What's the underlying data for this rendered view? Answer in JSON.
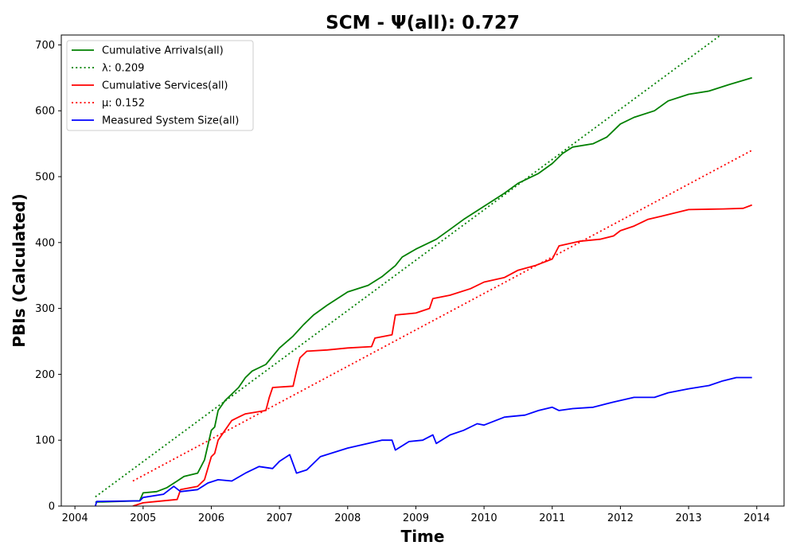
{
  "chart_data": {
    "type": "line",
    "title": "SCM -  Ψ(all): 0.727",
    "xlabel": "Time",
    "ylabel": "PBIs (Calculated)",
    "xlim": [
      2003.8,
      2014.4
    ],
    "ylim": [
      0,
      715
    ],
    "x_ticks": [
      2004,
      2005,
      2006,
      2007,
      2008,
      2009,
      2010,
      2011,
      2012,
      2013,
      2014
    ],
    "y_ticks": [
      0,
      100,
      200,
      300,
      400,
      500,
      600,
      700
    ],
    "grid": false,
    "legend_position": "top-left",
    "series": [
      {
        "name": "Cumulative Arrivals(all)",
        "color": "#008000",
        "style": "solid",
        "points": [
          [
            2004.3,
            6
          ],
          [
            2004.95,
            8
          ],
          [
            2005.0,
            20
          ],
          [
            2005.2,
            22
          ],
          [
            2005.35,
            28
          ],
          [
            2005.5,
            38
          ],
          [
            2005.6,
            45
          ],
          [
            2005.8,
            50
          ],
          [
            2005.9,
            70
          ],
          [
            2006.0,
            115
          ],
          [
            2006.05,
            120
          ],
          [
            2006.1,
            145
          ],
          [
            2006.2,
            160
          ],
          [
            2006.4,
            180
          ],
          [
            2006.5,
            195
          ],
          [
            2006.6,
            205
          ],
          [
            2006.8,
            215
          ],
          [
            2007.0,
            240
          ],
          [
            2007.2,
            258
          ],
          [
            2007.35,
            275
          ],
          [
            2007.5,
            290
          ],
          [
            2007.7,
            305
          ],
          [
            2008.0,
            325
          ],
          [
            2008.3,
            335
          ],
          [
            2008.5,
            348
          ],
          [
            2008.7,
            365
          ],
          [
            2008.8,
            378
          ],
          [
            2009.0,
            390
          ],
          [
            2009.3,
            405
          ],
          [
            2009.5,
            420
          ],
          [
            2009.7,
            435
          ],
          [
            2010.0,
            455
          ],
          [
            2010.3,
            475
          ],
          [
            2010.5,
            490
          ],
          [
            2010.8,
            505
          ],
          [
            2011.0,
            520
          ],
          [
            2011.15,
            535
          ],
          [
            2011.3,
            545
          ],
          [
            2011.6,
            550
          ],
          [
            2011.8,
            560
          ],
          [
            2012.0,
            580
          ],
          [
            2012.2,
            590
          ],
          [
            2012.5,
            600
          ],
          [
            2012.7,
            615
          ],
          [
            2013.0,
            625
          ],
          [
            2013.3,
            630
          ],
          [
            2013.6,
            640
          ],
          [
            2013.93,
            650
          ]
        ]
      },
      {
        "name": "λ: 0.209",
        "color": "#008000",
        "style": "dotted",
        "points": [
          [
            2004.3,
            14
          ],
          [
            2013.93,
            750
          ]
        ]
      },
      {
        "name": "Cumulative Services(all)",
        "color": "#ff0000",
        "style": "solid",
        "points": [
          [
            2004.85,
            0
          ],
          [
            2005.0,
            5
          ],
          [
            2005.2,
            7
          ],
          [
            2005.5,
            10
          ],
          [
            2005.55,
            25
          ],
          [
            2005.8,
            30
          ],
          [
            2005.9,
            40
          ],
          [
            2006.0,
            75
          ],
          [
            2006.05,
            80
          ],
          [
            2006.1,
            100
          ],
          [
            2006.2,
            115
          ],
          [
            2006.3,
            130
          ],
          [
            2006.4,
            135
          ],
          [
            2006.5,
            140
          ],
          [
            2006.8,
            145
          ],
          [
            2006.85,
            165
          ],
          [
            2006.9,
            180
          ],
          [
            2007.2,
            182
          ],
          [
            2007.25,
            205
          ],
          [
            2007.3,
            225
          ],
          [
            2007.4,
            235
          ],
          [
            2007.7,
            237
          ],
          [
            2008.0,
            240
          ],
          [
            2008.35,
            242
          ],
          [
            2008.4,
            255
          ],
          [
            2008.65,
            260
          ],
          [
            2008.7,
            290
          ],
          [
            2009.0,
            293
          ],
          [
            2009.2,
            300
          ],
          [
            2009.25,
            315
          ],
          [
            2009.5,
            320
          ],
          [
            2009.8,
            330
          ],
          [
            2010.0,
            340
          ],
          [
            2010.3,
            347
          ],
          [
            2010.5,
            358
          ],
          [
            2010.75,
            365
          ],
          [
            2011.0,
            375
          ],
          [
            2011.1,
            395
          ],
          [
            2011.4,
            402
          ],
          [
            2011.7,
            405
          ],
          [
            2011.9,
            410
          ],
          [
            2012.0,
            418
          ],
          [
            2012.2,
            425
          ],
          [
            2012.4,
            435
          ],
          [
            2012.6,
            440
          ],
          [
            2013.0,
            450
          ],
          [
            2013.5,
            451
          ],
          [
            2013.8,
            452
          ],
          [
            2013.93,
            457
          ]
        ]
      },
      {
        "name": "μ: 0.152",
        "color": "#ff0000",
        "style": "dotted",
        "points": [
          [
            2004.85,
            38
          ],
          [
            2013.93,
            540
          ]
        ]
      },
      {
        "name": "Measured System Size(all)",
        "color": "#0000ff",
        "style": "solid",
        "points": [
          [
            2004.3,
            0
          ],
          [
            2004.32,
            7
          ],
          [
            2004.95,
            8
          ],
          [
            2005.0,
            13
          ],
          [
            2005.3,
            18
          ],
          [
            2005.45,
            30
          ],
          [
            2005.55,
            22
          ],
          [
            2005.8,
            25
          ],
          [
            2005.95,
            35
          ],
          [
            2006.1,
            40
          ],
          [
            2006.3,
            38
          ],
          [
            2006.5,
            50
          ],
          [
            2006.7,
            60
          ],
          [
            2006.9,
            57
          ],
          [
            2007.0,
            68
          ],
          [
            2007.15,
            78
          ],
          [
            2007.25,
            50
          ],
          [
            2007.4,
            55
          ],
          [
            2007.6,
            75
          ],
          [
            2008.0,
            88
          ],
          [
            2008.3,
            95
          ],
          [
            2008.5,
            100
          ],
          [
            2008.65,
            100
          ],
          [
            2008.7,
            85
          ],
          [
            2008.9,
            98
          ],
          [
            2009.1,
            100
          ],
          [
            2009.25,
            108
          ],
          [
            2009.3,
            95
          ],
          [
            2009.5,
            108
          ],
          [
            2009.7,
            115
          ],
          [
            2009.9,
            125
          ],
          [
            2010.0,
            123
          ],
          [
            2010.3,
            135
          ],
          [
            2010.6,
            138
          ],
          [
            2010.8,
            145
          ],
          [
            2011.0,
            150
          ],
          [
            2011.1,
            145
          ],
          [
            2011.3,
            148
          ],
          [
            2011.6,
            150
          ],
          [
            2011.9,
            158
          ],
          [
            2012.2,
            165
          ],
          [
            2012.5,
            165
          ],
          [
            2012.7,
            172
          ],
          [
            2013.0,
            178
          ],
          [
            2013.3,
            183
          ],
          [
            2013.5,
            190
          ],
          [
            2013.7,
            195
          ],
          [
            2013.93,
            195
          ]
        ]
      }
    ]
  }
}
